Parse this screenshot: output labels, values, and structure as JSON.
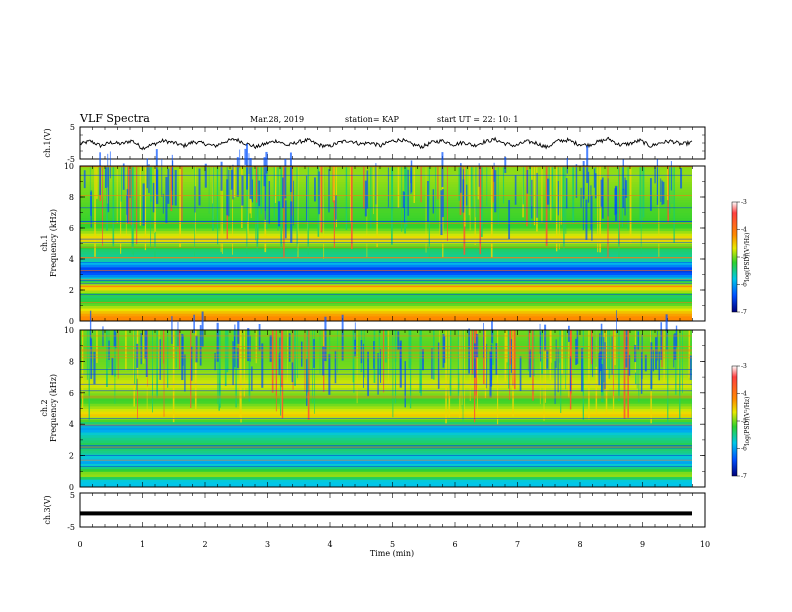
{
  "header": {
    "title": "VLF Spectra",
    "date": "Mar.28, 2019",
    "station": "station= KAP",
    "start_ut": "start  UT =   22: 10: 1"
  },
  "chart_data": [
    {
      "type": "line",
      "ylabel": "ch.1(V)",
      "yticks": [
        "5",
        "-5"
      ],
      "ylim": [
        -5,
        5
      ],
      "xlim": [
        0,
        10
      ],
      "y": [
        -0.4,
        0.6,
        -0.9,
        0.2,
        -0.3,
        0.8,
        -1.6,
        -0.5,
        0.7,
        0.1,
        -0.9,
        0.4,
        -0.2,
        -1.0,
        0.5,
        1.2,
        -0.2,
        -1.3,
        -0.1,
        0.7,
        -0.8,
        0.3,
        0.9,
        -0.6,
        -1.1,
        0.2,
        0.8,
        -0.3,
        0.1,
        -0.9,
        0.6,
        1.0,
        -0.4,
        -1.2,
        0.3,
        0.7,
        -0.5,
        0.2,
        -0.8,
        0.4,
        1.1,
        -0.2,
        -0.9,
        0.5,
        0.0,
        -1.4,
        0.6,
        0.9,
        -0.3,
        -0.7,
        0.4,
        1.3,
        -0.6,
        -0.2,
        0.8,
        -1.0,
        0.1,
        0.6,
        -0.4,
        0.2
      ]
    },
    {
      "type": "heatmap",
      "ylabel": "ch.1",
      "ylabel2": "Frequency (kHz)",
      "yticks": [
        "0",
        "2",
        "4",
        "6",
        "8",
        "10"
      ],
      "ylim": [
        0,
        10
      ],
      "xlim": [
        0,
        10
      ],
      "colorbar": {
        "ticks": [
          "-3",
          "-4",
          "-5",
          "-6",
          "-7"
        ],
        "label": "log(PSD)(V²/Hz)",
        "range": [
          -7,
          -3
        ]
      },
      "bands": [
        {
          "f": 0.3,
          "v": -4.2
        },
        {
          "f": 0.7,
          "v": -4.6
        },
        {
          "f": 1.2,
          "v": -5.2
        },
        {
          "f": 1.6,
          "v": -5.4
        },
        {
          "f": 2.2,
          "v": -4.4
        },
        {
          "f": 3.0,
          "v": -6.3
        },
        {
          "f": 3.3,
          "v": -6.6
        },
        {
          "f": 3.9,
          "v": -5.6
        },
        {
          "f": 4.6,
          "v": -5.4
        },
        {
          "f": 5.3,
          "v": -4.5
        },
        {
          "f": 6.1,
          "v": -5.2
        },
        {
          "f": 7.5,
          "v": -5.1
        },
        {
          "f": 9.3,
          "v": -4.9
        }
      ]
    },
    {
      "type": "heatmap",
      "ylabel": "ch.2",
      "ylabel2": "Frequency (kHz)",
      "yticks": [
        "0",
        "2",
        "4",
        "6",
        "8",
        "10"
      ],
      "ylim": [
        0,
        10
      ],
      "xlim": [
        0,
        10
      ],
      "colorbar": {
        "ticks": [
          "-3",
          "-4",
          "-5",
          "-6",
          "-7"
        ],
        "label": "log(PSD)(V²/Hz)",
        "range": [
          -7,
          -3
        ]
      },
      "bands": [
        {
          "f": 0.4,
          "v": -5.8
        },
        {
          "f": 0.8,
          "v": -4.8
        },
        {
          "f": 1.6,
          "v": -6.0
        },
        {
          "f": 2.2,
          "v": -5.5
        },
        {
          "f": 2.7,
          "v": -5.3
        },
        {
          "f": 3.4,
          "v": -5.7
        },
        {
          "f": 3.7,
          "v": -6.1
        },
        {
          "f": 4.6,
          "v": -4.5
        },
        {
          "f": 5.5,
          "v": -5.2
        },
        {
          "f": 6.5,
          "v": -4.7
        },
        {
          "f": 7.6,
          "v": -5.0
        },
        {
          "f": 9.0,
          "v": -5.1
        }
      ]
    },
    {
      "type": "line",
      "ylabel": "ch.3(V)",
      "yticks": [
        "5",
        "-5"
      ],
      "ylim": [
        -5,
        5
      ],
      "xlim": [
        0,
        10
      ],
      "value": -1.0,
      "xlabel": "Time  (min)",
      "xticks": [
        "0",
        "1",
        "2",
        "3",
        "4",
        "5",
        "6",
        "7",
        "8",
        "9",
        "10"
      ]
    }
  ]
}
